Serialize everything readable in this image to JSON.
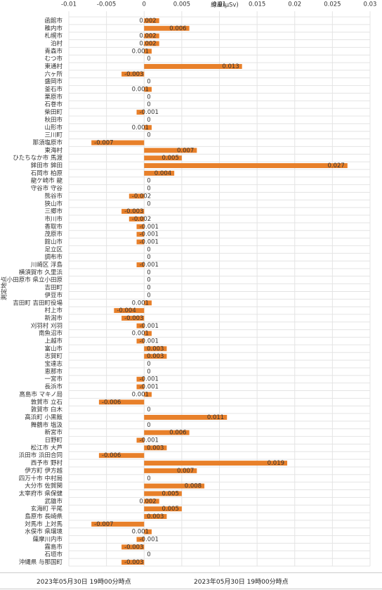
{
  "chart_data": {
    "type": "bar",
    "orientation": "horizontal",
    "x_label": "線量(μSv)",
    "y_label": "測定地点",
    "categories": [
      "函館市",
      "稚内市",
      "札幌市",
      "泊村",
      "青森市",
      "むつ市",
      "東通村",
      "六ヶ所",
      "盛岡市",
      "釜石市",
      "栗原市",
      "石巻市",
      "柴田町",
      "秋田市",
      "山形市",
      "三川町",
      "那須塩原市",
      "東海村",
      "ひたちなか市 馬渡",
      "鉾田市 鉾田",
      "石岡市 柏原",
      "龍ケ崎市 龍",
      "守谷市 守谷",
      "熊谷市",
      "狭山市",
      "三郷市",
      "市川市",
      "香取市",
      "茂原市",
      "館山市",
      "足立区",
      "調布市",
      "川崎区 浮島",
      "横須賀市 久里浜",
      "小田原市 県立小田原",
      "吉田町",
      "伊豆市",
      "吉田町 吉田町役場",
      "村上市",
      "新潟市",
      "刈羽村 刈羽",
      "南魚沼市",
      "上越市",
      "富山市",
      "志賀町",
      "宝達志",
      "恵那市",
      "一宮市",
      "長浜市",
      "高島市 マキノ局",
      "敦賀市 立石",
      "敦賀市 白木",
      "高浜町 小黒飯",
      "舞鶴市 塩汲",
      "新宮市",
      "日野町",
      "松江市 大芦",
      "浜田市 浜田合同",
      "西予市 野村",
      "伊方町 伊方越",
      "四万十市 中村局",
      "大分市 佐賀関",
      "太宰府市 県保健",
      "武雄市",
      "玄海町 平尾",
      "島原市 長崎県",
      "対馬市 上対馬",
      "水俣市 県環境",
      "薩摩川内市",
      "霧島市",
      "石垣市",
      "沖縄県 与那国町"
    ],
    "values": [
      0.002,
      0.006,
      0.002,
      0.002,
      0.001,
      0,
      0.013,
      -0.003,
      0,
      0.001,
      0,
      0,
      -0.001,
      0,
      0.001,
      0,
      -0.007,
      0.007,
      0.005,
      0.027,
      0.004,
      0,
      0,
      -0.002,
      0,
      -0.003,
      -0.002,
      -0.001,
      -0.001,
      -0.001,
      0,
      0,
      -0.001,
      0,
      0,
      0,
      0,
      0.001,
      -0.004,
      -0.003,
      -0.001,
      0.001,
      -0.001,
      0.003,
      0.003,
      0,
      0,
      -0.001,
      -0.001,
      0.001,
      -0.006,
      0,
      0.011,
      0,
      0.006,
      -0.001,
      0.003,
      -0.006,
      0.019,
      0.007,
      0,
      0.008,
      0.005,
      0.002,
      0.005,
      0.003,
      -0.007,
      0.001,
      -0.001,
      -0.003,
      0,
      -0.003
    ],
    "color": "#e8802a",
    "xlim": [
      -0.01,
      0.03
    ],
    "xticks": [
      -0.01,
      -0.005,
      0,
      0.005,
      0.01,
      0.015,
      0.02,
      0.025,
      0.03
    ],
    "grid": true
  },
  "footer": {
    "cells": [
      "2023年05月30日 19時00分時点",
      "2023年05月30日 19時00分時点"
    ]
  }
}
